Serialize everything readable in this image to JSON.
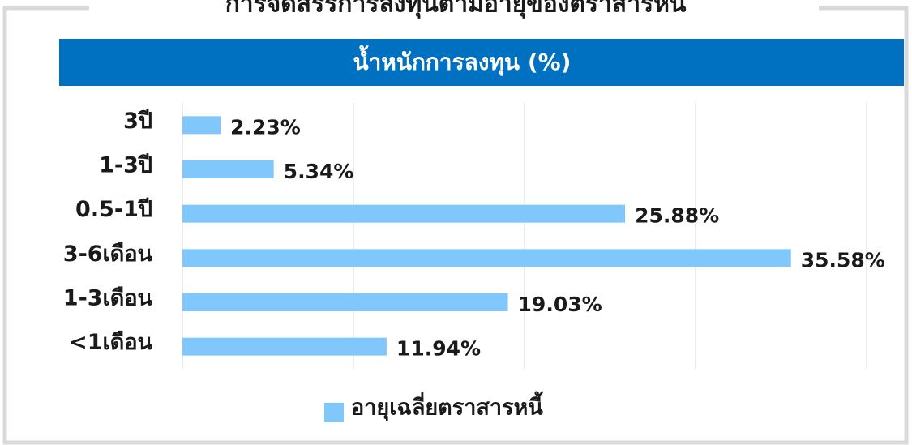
{
  "chart_data": {
    "type": "bar",
    "orientation": "horizontal",
    "title": "การจัดสรรการลงทุนตามอายุของตราสารหนี้",
    "subtitle": "น้ำหนักการลงทุน (%)",
    "categories": [
      "3ปี",
      "1-3ปี",
      "0.5-1ปี",
      "3-6เดือน",
      "1-3เดือน",
      "<1เดือน"
    ],
    "series": [
      {
        "name": "อายุเฉลี่ยตราสารหนี้",
        "color": "#80c7fc",
        "values": [
          2.23,
          5.34,
          25.88,
          35.58,
          19.03,
          11.94
        ],
        "value_labels": [
          "2.23%",
          "5.34%",
          "25.88%",
          "35.58%",
          "19.03%",
          "11.94%"
        ]
      }
    ],
    "xlim": [
      0,
      40
    ],
    "xticks": [
      0,
      10,
      20,
      30,
      40
    ],
    "grid": true,
    "legend": "bottom"
  }
}
